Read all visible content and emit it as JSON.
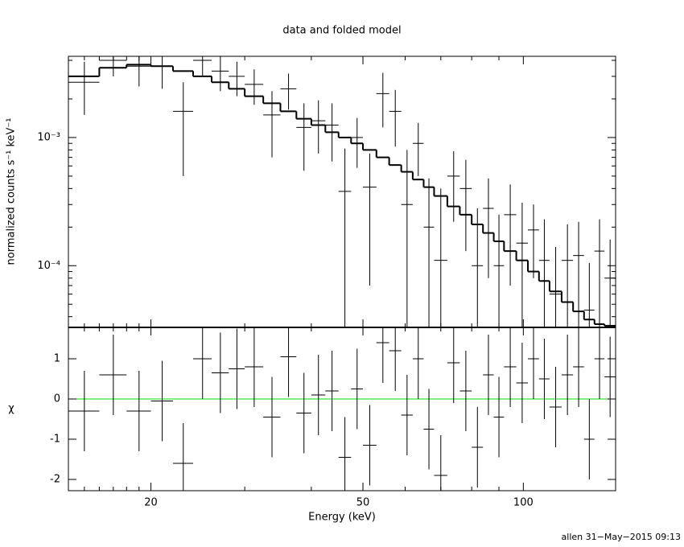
{
  "chart_data": [
    {
      "type": "spectrum",
      "title": "data and folded model",
      "ylabel": "normalized counts s⁻¹ keV⁻¹",
      "log_x": true,
      "log_y": true,
      "xlim": [
        14,
        149
      ],
      "ylim": [
        3.3e-05,
        0.0043
      ],
      "xticks": [
        20,
        50,
        100
      ],
      "xminorticks": [
        15,
        16,
        17,
        18,
        19,
        30,
        40,
        60,
        70,
        80,
        90
      ],
      "yticks": [
        {
          "value": 0.001,
          "label": "10⁻³"
        },
        {
          "value": 0.0001,
          "label": "10⁻⁴"
        }
      ],
      "yminorticks": [
        4e-05,
        5e-05,
        6e-05,
        7e-05,
        8e-05,
        9e-05,
        0.0002,
        0.0003,
        0.0004,
        0.0005,
        0.0006,
        0.0007,
        0.0008,
        0.0009,
        0.002,
        0.003,
        0.004
      ],
      "color": "#000000",
      "x": [
        15,
        17,
        19,
        21,
        23,
        25,
        27,
        29,
        31.25,
        33.75,
        36.25,
        38.75,
        41.25,
        43.75,
        46.25,
        48.75,
        51.5,
        54.5,
        57.5,
        60.5,
        63.5,
        66.5,
        70,
        74,
        78,
        82,
        86,
        90,
        94.5,
        99.5,
        104.5,
        109.5,
        115,
        121,
        127,
        133,
        139,
        145.5
      ],
      "xerr": [
        1,
        1,
        1,
        1,
        1,
        1,
        1,
        1,
        1.25,
        1.25,
        1.25,
        1.25,
        1.25,
        1.25,
        1.25,
        1.25,
        1.5,
        1.5,
        1.5,
        1.5,
        1.5,
        1.5,
        2,
        2,
        2,
        2,
        2,
        2,
        2.5,
        2.5,
        2.5,
        2.5,
        3,
        3,
        3,
        3,
        3,
        3.5
      ],
      "values": [
        0.0027,
        0.004,
        0.0036,
        0.0036,
        0.0016,
        0.004,
        0.0033,
        0.003,
        0.0026,
        0.0015,
        0.0024,
        0.0012,
        0.00135,
        0.00125,
        0.00038,
        0.001,
        0.00041,
        0.0022,
        0.0016,
        0.0003,
        0.0009,
        0.0002,
        0.00011,
        0.0005,
        0.0004,
        0.0001,
        0.00028,
        0.0001,
        0.00025,
        0.00015,
        0.00019,
        0.00011,
        6e-05,
        0.00011,
        0.00012,
        4.5e-05,
        0.00013,
        8e-05
      ],
      "errors": [
        0.0012,
        0.001,
        0.0011,
        0.0012,
        0.0011,
        0.001,
        0.001,
        0.0009,
        0.0008,
        0.0008,
        0.00075,
        0.00065,
        0.0006,
        0.0006,
        0.00044,
        0.00042,
        0.00034,
        0.001,
        0.00075,
        0.0005,
        0.0004,
        0.00028,
        0.00029,
        0.00028,
        0.00027,
        0.00018,
        0.0002,
        0.00015,
        0.00018,
        0.00016,
        0.00011,
        0.00012,
        8e-05,
        0.0001,
        0.0001,
        6e-05,
        0.0001,
        8e-05
      ],
      "model": [
        0.003,
        0.0035,
        0.0037,
        0.0036,
        0.0033,
        0.003,
        0.0027,
        0.0024,
        0.0021,
        0.00185,
        0.0016,
        0.0014,
        0.00125,
        0.0011,
        0.001,
        0.0009,
        0.0008,
        0.0007,
        0.00061,
        0.00054,
        0.00047,
        0.00041,
        0.00035,
        0.00029,
        0.00025,
        0.00021,
        0.00018,
        0.000155,
        0.00013,
        0.00011,
        9e-05,
        7.6e-05,
        6.3e-05,
        5.2e-05,
        4.4e-05,
        3.8e-05,
        3.5e-05,
        3.4e-05
      ]
    },
    {
      "type": "residual",
      "xlabel": "Energy (keV)",
      "ylabel": "χ",
      "log_x": true,
      "xlim": [
        14,
        149
      ],
      "ylim": [
        -2.28,
        1.78
      ],
      "xticks": [
        20,
        50,
        100
      ],
      "xminorticks": [
        15,
        16,
        17,
        18,
        19,
        30,
        40,
        60,
        70,
        80,
        90
      ],
      "yticks": [
        -2,
        -1,
        0,
        1
      ],
      "reference_line": 0,
      "reference_color": "#00dd00",
      "color": "#000000",
      "x": [
        15,
        17,
        19,
        21,
        23,
        25,
        27,
        29,
        31.25,
        33.75,
        36.25,
        38.75,
        41.25,
        43.75,
        46.25,
        48.75,
        51.5,
        54.5,
        57.5,
        60.5,
        63.5,
        66.5,
        70,
        74,
        78,
        82,
        86,
        90,
        94.5,
        99.5,
        104.5,
        109.5,
        115,
        121,
        127,
        133,
        139,
        145.5
      ],
      "xerr": [
        1,
        1,
        1,
        1,
        1,
        1,
        1,
        1,
        1.25,
        1.25,
        1.25,
        1.25,
        1.25,
        1.25,
        1.25,
        1.25,
        1.5,
        1.5,
        1.5,
        1.5,
        1.5,
        1.5,
        2,
        2,
        2,
        2,
        2,
        2,
        2.5,
        2.5,
        2.5,
        2.5,
        3,
        3,
        3,
        3,
        3,
        3.5
      ],
      "values": [
        -0.3,
        0.6,
        -0.3,
        -0.05,
        -1.6,
        1.0,
        0.65,
        0.75,
        0.8,
        -0.45,
        1.05,
        -0.35,
        0.1,
        0.2,
        -1.45,
        0.25,
        -1.15,
        1.4,
        1.2,
        -0.4,
        1.0,
        -0.75,
        -1.9,
        0.9,
        0.2,
        -1.2,
        0.6,
        -0.45,
        0.8,
        0.4,
        1.0,
        0.5,
        -0.2,
        0.6,
        0.8,
        -1.0,
        1.0,
        0.55
      ],
      "errors": [
        1,
        1,
        1,
        1,
        1,
        1,
        1,
        1,
        1,
        1,
        1,
        1,
        1,
        1,
        1,
        1,
        1,
        1,
        1,
        1,
        1,
        1,
        1,
        1,
        1,
        1,
        1,
        1,
        1,
        1,
        1,
        1,
        1,
        1,
        1,
        1,
        1,
        1
      ]
    }
  ],
  "footer": "allen 31−May−2015 09:13"
}
